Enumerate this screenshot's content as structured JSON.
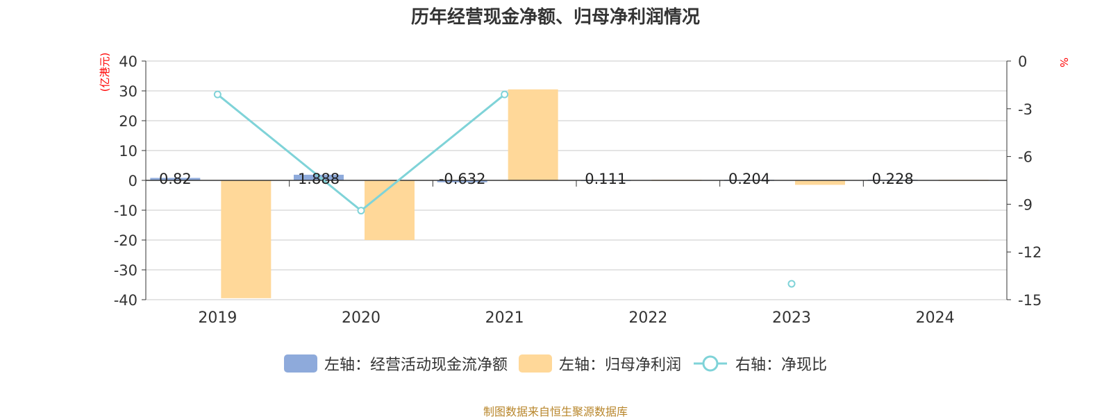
{
  "title": "历年经营现金净额、归母净利润情况",
  "left_axis_unit": "(亿港元)",
  "right_axis_unit": "%",
  "source": "制图数据来自恒生聚源数据库",
  "colors": {
    "series1": "#8eaadb",
    "series2": "#ffd899",
    "series3": "#7fd3d8",
    "axis_unit": "#ff0000",
    "source": "#b8862b"
  },
  "chart_data": {
    "type": "bar",
    "categories": [
      "2019",
      "2020",
      "2021",
      "2022",
      "2023",
      "2024"
    ],
    "left_axis": {
      "ylim": [
        -40,
        40
      ],
      "ticks": [
        "40",
        "30",
        "20",
        "10",
        "0",
        "-10",
        "-20",
        "-30",
        "-40"
      ]
    },
    "right_axis": {
      "ylim": [
        -15,
        0
      ],
      "ticks": [
        "0",
        "-3",
        "-6",
        "-9",
        "-12",
        "-15"
      ]
    },
    "series": [
      {
        "name": "左轴：经营活动现金流净额",
        "type": "bar",
        "axis": "left",
        "values": [
          0.82,
          1.888,
          -0.632,
          0.111,
          0.204,
          0.228
        ],
        "labels": [
          "0.82",
          "1.888",
          "-0.632",
          "0.111",
          "0.204",
          "0.228"
        ]
      },
      {
        "name": "左轴：归母净利润",
        "type": "bar",
        "axis": "left",
        "values": [
          -39.5,
          -20.0,
          30.5,
          0.2,
          -1.5,
          0.2
        ]
      },
      {
        "name": "右轴：净现比",
        "type": "line",
        "axis": "right",
        "values": [
          -2.1,
          -9.4,
          -2.1,
          null,
          -14.0,
          null
        ]
      }
    ],
    "grid": true,
    "legend_position": "bottom"
  }
}
